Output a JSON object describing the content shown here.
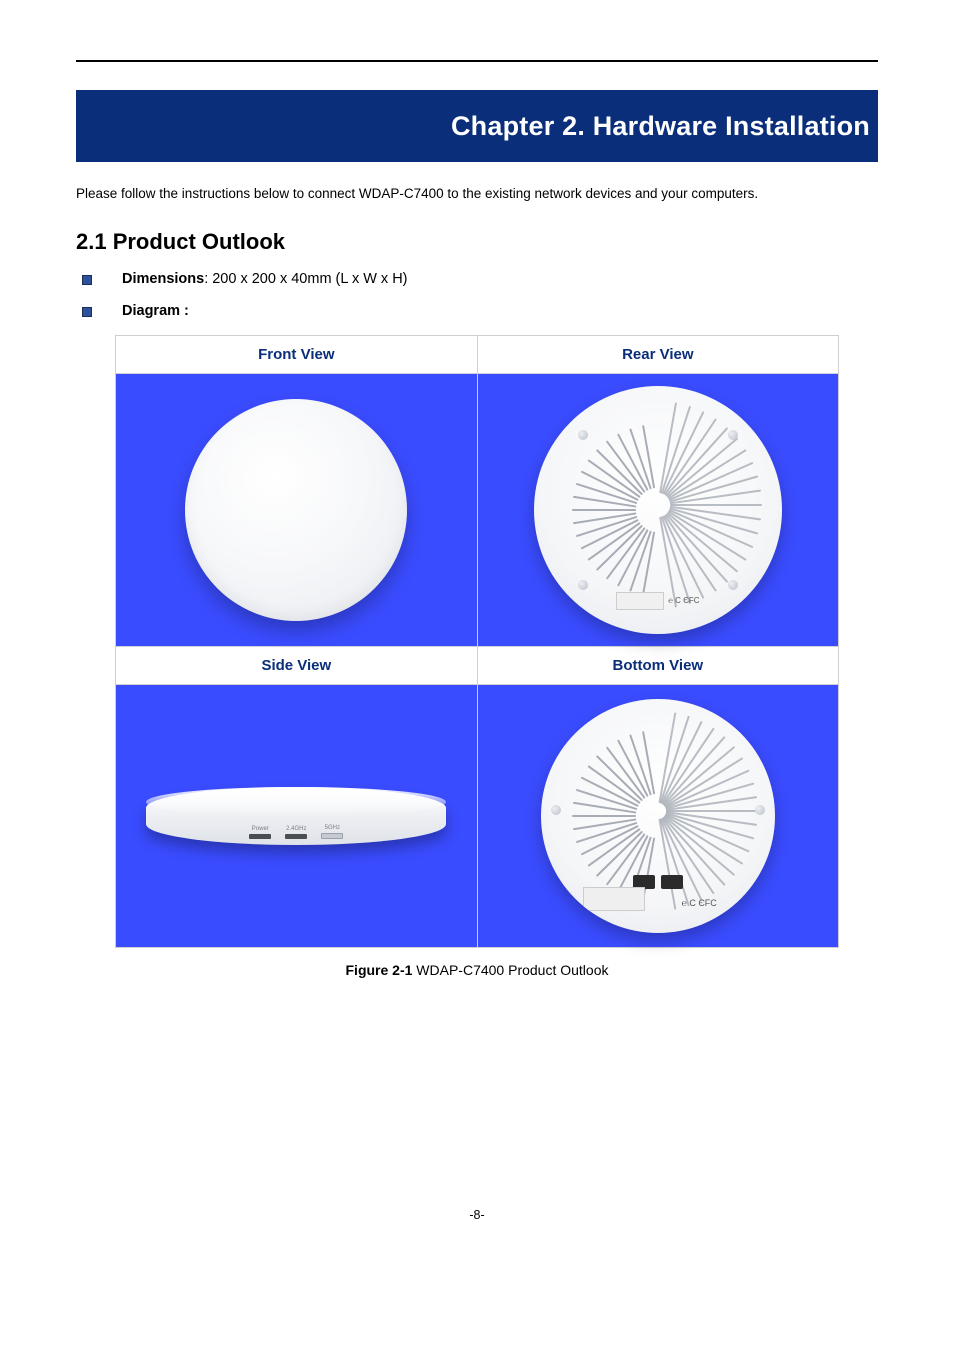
{
  "page": {
    "number": "-8-"
  },
  "chapter": {
    "title": "Chapter 2.  Hardware Installation",
    "banner_bg": "#0a2e7a",
    "banner_fg": "#ffffff"
  },
  "intro_text": "Please follow the instructions below to connect WDAP-C7400 to the existing network devices and your computers.",
  "section": {
    "number": "2.1",
    "title": "Product Outlook",
    "heading": "2.1  Product Outlook"
  },
  "bullets": {
    "dimension_label": "Dimensions",
    "dimension_value": ": 200 x 200 x 40mm (L x W x H)",
    "diagram_label": "Diagram :"
  },
  "views_table": {
    "type": "table",
    "columns": 2,
    "rows": 2,
    "header_color": "#0a2e7a",
    "cell_bg": "#3a4cff",
    "border_color": "#cfcfcf",
    "headers_row1": [
      "Front View",
      "Rear View"
    ],
    "headers_row2": [
      "Side View",
      "Bottom View"
    ]
  },
  "side_view": {
    "ports": [
      {
        "label": "Power",
        "style": "dark"
      },
      {
        "label": "2.4GHz",
        "style": "dark"
      },
      {
        "label": "5GHz",
        "style": "light"
      }
    ]
  },
  "rear_view": {
    "cert_marks": "℮ C ЄFC"
  },
  "bottom_view": {
    "cert_marks": "℮ C ЄFC"
  },
  "figure": {
    "number": "Figure 2-1",
    "caption": " WDAP-C7400 Product Outlook"
  },
  "colors": {
    "bullet_square": "#2e4f99",
    "text": "#000000"
  }
}
